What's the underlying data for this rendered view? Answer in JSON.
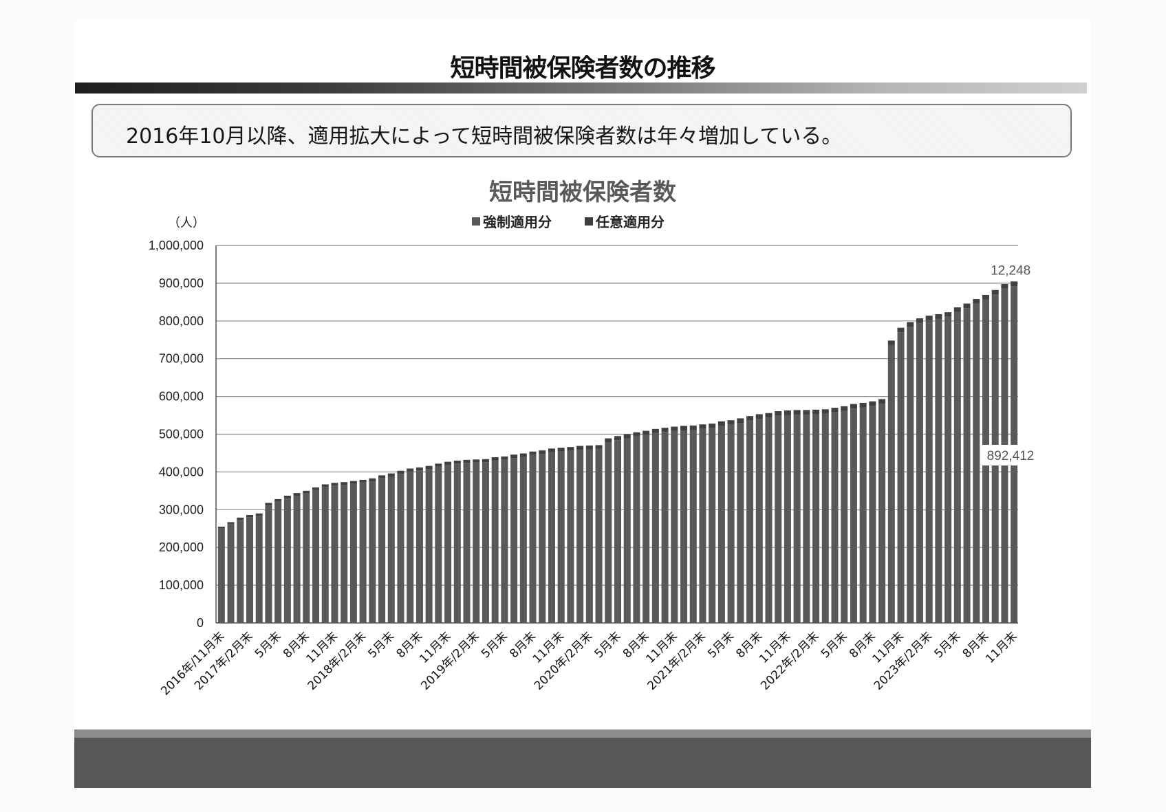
{
  "slide": {
    "title": "短時間被保険者数の推移",
    "summary": "2016年10月以降、適用拡大によって短時間被保険者数は年々増加している。"
  },
  "chart_data": {
    "type": "bar",
    "stacked": true,
    "title": "短時間被保険者数",
    "ylabel": "（人）",
    "xlabel": "",
    "ylim": [
      0,
      1000000
    ],
    "yticks": [
      "0",
      "100,000",
      "200,000",
      "300,000",
      "400,000",
      "500,000",
      "600,000",
      "700,000",
      "800,000",
      "900,000",
      "1,000,000"
    ],
    "grid": true,
    "legend_position": "top",
    "colors": {
      "強制適用分": "#595959",
      "任意適用分": "#404040"
    },
    "tick_labels": [
      {
        "index": 0,
        "label": "2016年/11月末"
      },
      {
        "index": 3,
        "label": "2017年/2月末"
      },
      {
        "index": 6,
        "label": "5月末"
      },
      {
        "index": 9,
        "label": "8月末"
      },
      {
        "index": 12,
        "label": "11月末"
      },
      {
        "index": 15,
        "label": "2018年/2月末"
      },
      {
        "index": 18,
        "label": "5月末"
      },
      {
        "index": 21,
        "label": "8月末"
      },
      {
        "index": 24,
        "label": "11月末"
      },
      {
        "index": 27,
        "label": "2019年/2月末"
      },
      {
        "index": 30,
        "label": "5月末"
      },
      {
        "index": 33,
        "label": "8月末"
      },
      {
        "index": 36,
        "label": "11月末"
      },
      {
        "index": 39,
        "label": "2020年/2月末"
      },
      {
        "index": 42,
        "label": "5月末"
      },
      {
        "index": 45,
        "label": "8月末"
      },
      {
        "index": 48,
        "label": "11月末"
      },
      {
        "index": 51,
        "label": "2021年/2月末"
      },
      {
        "index": 54,
        "label": "5月末"
      },
      {
        "index": 57,
        "label": "8月末"
      },
      {
        "index": 60,
        "label": "11月末"
      },
      {
        "index": 63,
        "label": "2022年/2月末"
      },
      {
        "index": 66,
        "label": "5月末"
      },
      {
        "index": 69,
        "label": "8月末"
      },
      {
        "index": 72,
        "label": "11月末"
      },
      {
        "index": 75,
        "label": "2023年/2月末"
      },
      {
        "index": 78,
        "label": "5月末"
      },
      {
        "index": 81,
        "label": "8月末"
      },
      {
        "index": 84,
        "label": "11月末"
      }
    ],
    "categories_note": "monthly from 2016年11月末 to 2023年11月末 (85 months)",
    "series": [
      {
        "name": "強制適用分",
        "values": [
          250000,
          262000,
          273000,
          280000,
          284000,
          311000,
          321000,
          330000,
          337000,
          343000,
          352000,
          360000,
          364000,
          366000,
          369000,
          372000,
          375000,
          383000,
          388000,
          395000,
          401000,
          404000,
          408000,
          414000,
          419000,
          422000,
          424000,
          425000,
          426000,
          430000,
          432000,
          437000,
          440000,
          445000,
          448000,
          452000,
          454000,
          456000,
          459000,
          460000,
          461000,
          478000,
          484000,
          489000,
          494000,
          498000,
          503000,
          506000,
          509000,
          510000,
          511000,
          514000,
          516000,
          522000,
          525000,
          530000,
          536000,
          541000,
          544000,
          549000,
          551000,
          552000,
          552000,
          553000,
          554000,
          558000,
          562000,
          568000,
          571000,
          575000,
          581000,
          736000,
          770000,
          785000,
          795000,
          802000,
          806000,
          811000,
          824000,
          834000,
          846000,
          857000,
          870000,
          886000,
          892412
        ]
      },
      {
        "name": "任意適用分",
        "values": [
          5000,
          5000,
          6000,
          6000,
          6000,
          7000,
          7000,
          7000,
          7000,
          7000,
          7000,
          7000,
          7000,
          7000,
          7000,
          7000,
          8000,
          8000,
          8000,
          8000,
          8000,
          8000,
          8000,
          8000,
          8000,
          8000,
          8000,
          8000,
          8000,
          9000,
          9000,
          9000,
          9000,
          9000,
          9000,
          10000,
          10000,
          10000,
          10000,
          10000,
          10000,
          11000,
          11000,
          11000,
          11000,
          11000,
          11000,
          11000,
          11000,
          12000,
          12000,
          12000,
          12000,
          12000,
          12000,
          12000,
          12000,
          12000,
          12000,
          12000,
          12000,
          12000,
          12000,
          12000,
          12000,
          12000,
          12000,
          12000,
          12000,
          12000,
          12000,
          12000,
          12000,
          12000,
          12000,
          12000,
          12000,
          12000,
          12000,
          12000,
          12000,
          12000,
          12000,
          12000,
          12248
        ]
      }
    ],
    "annotations": [
      {
        "text": "12,248",
        "series": "任意適用分",
        "index": 84
      },
      {
        "text": "892,412",
        "series": "強制適用分",
        "index": 84
      }
    ]
  }
}
